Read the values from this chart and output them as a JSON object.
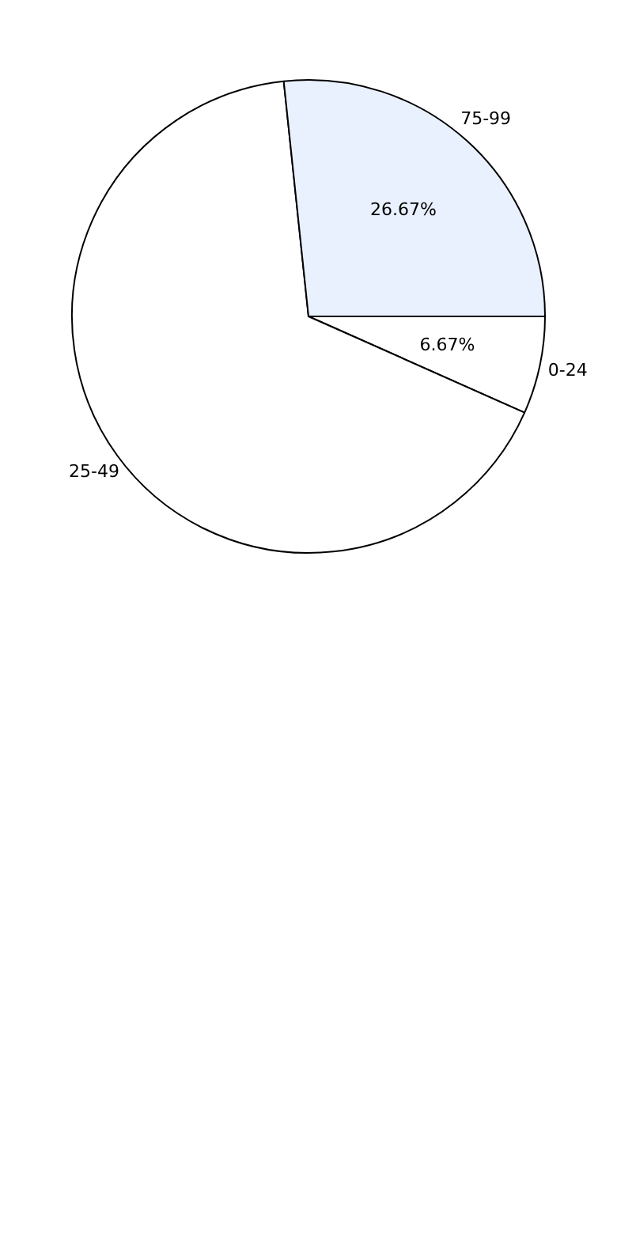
{
  "chart_data": {
    "type": "pie",
    "categories": [
      "0-24",
      "25-49",
      "75-99"
    ],
    "values": [
      6.67,
      66.66,
      26.67
    ],
    "colors": [
      "#ffffff",
      "#ffffff",
      "#eaf1fe"
    ],
    "value_labels": [
      "6.67%",
      null,
      "26.67%"
    ],
    "legend": false
  }
}
